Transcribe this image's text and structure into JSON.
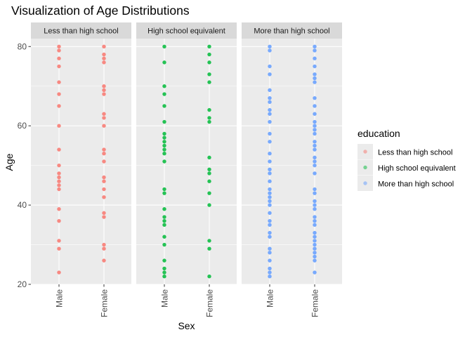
{
  "chart_data": {
    "type": "scatter",
    "title": "Visualization of Age Distributions",
    "xlabel": "Sex",
    "ylabel": "Age",
    "x_categories": [
      "Male",
      "Female"
    ],
    "ylim": [
      20,
      82
    ],
    "y_ticks": [
      20,
      40,
      60,
      80
    ],
    "grid": true,
    "legend": {
      "title": "education",
      "position": "right",
      "entries": [
        {
          "label": "Less than high school",
          "color": "#F8766D"
        },
        {
          "label": "High school equivalent",
          "color": "#00BA38"
        },
        {
          "label": "More than high school",
          "color": "#619CFF"
        }
      ]
    },
    "panels": [
      {
        "label": "Less than high school",
        "color": "#F8766D",
        "points": {
          "Male": [
            23,
            29,
            31,
            36,
            39,
            44,
            45,
            46,
            47,
            48,
            50,
            54,
            60,
            65,
            68,
            71,
            75,
            77,
            79,
            80
          ],
          "Female": [
            26,
            29,
            30,
            37,
            38,
            42,
            44,
            46,
            47,
            51,
            53,
            54,
            60,
            62,
            63,
            68,
            69,
            70,
            76,
            77,
            78,
            80
          ]
        }
      },
      {
        "label": "High school equivalent",
        "color": "#00BA38",
        "points": {
          "Male": [
            22,
            23,
            24,
            26,
            30,
            32,
            35,
            36,
            37,
            39,
            43,
            44,
            51,
            53,
            54,
            55,
            56,
            57,
            58,
            61,
            65,
            68,
            70,
            76,
            80
          ],
          "Female": [
            22,
            29,
            31,
            40,
            43,
            46,
            48,
            49,
            52,
            61,
            62,
            64,
            71,
            73,
            76,
            78,
            80
          ]
        }
      },
      {
        "label": "More than high school",
        "color": "#619CFF",
        "points": {
          "Male": [
            22,
            23,
            24,
            26,
            28,
            29,
            32,
            33,
            35,
            36,
            38,
            40,
            41,
            42,
            43,
            44,
            46,
            48,
            49,
            51,
            53,
            56,
            58,
            61,
            63,
            64,
            66,
            67,
            69,
            73,
            75,
            79,
            80
          ],
          "Female": [
            23,
            26,
            27,
            28,
            29,
            30,
            31,
            32,
            33,
            35,
            36,
            37,
            39,
            40,
            41,
            43,
            44,
            48,
            50,
            51,
            52,
            54,
            55,
            56,
            58,
            59,
            60,
            61,
            63,
            65,
            67,
            71,
            72,
            73,
            75,
            77,
            79,
            80
          ]
        }
      }
    ]
  }
}
